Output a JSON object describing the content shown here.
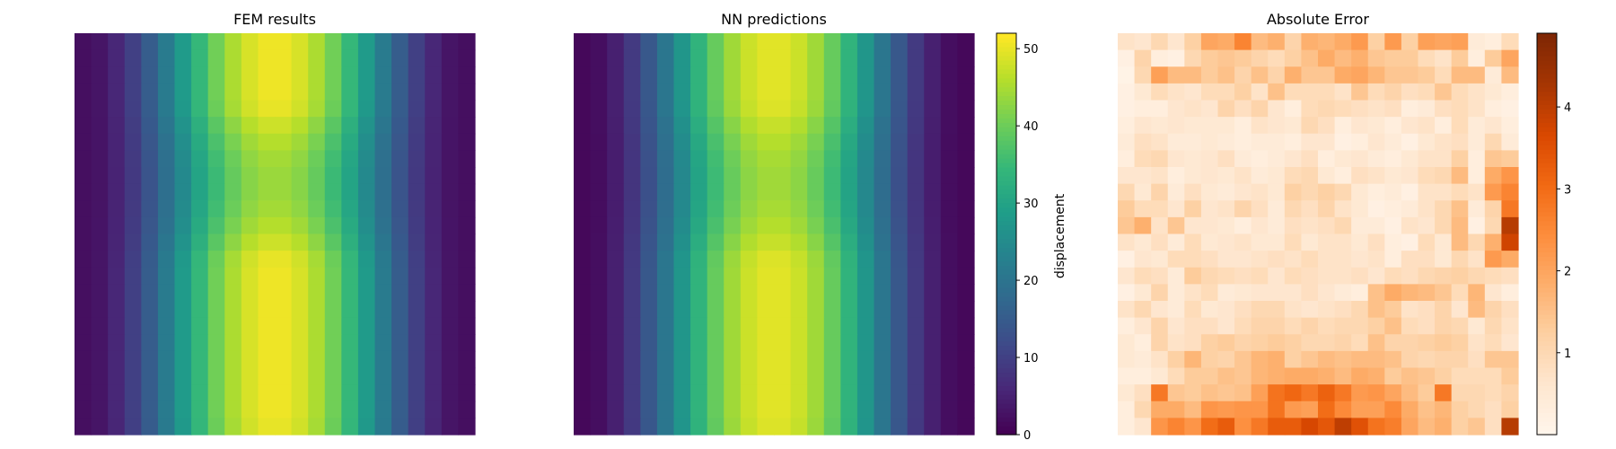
{
  "chart_data": [
    {
      "type": "heatmap",
      "title": "FEM results",
      "grid_size": [
        24,
        24
      ],
      "colormap": "viridis",
      "value_range": [
        0,
        52
      ],
      "axes_visible": false,
      "field": {
        "center_column": 11.5,
        "column_wavelength": 23,
        "row_period": 19,
        "row_phase": -1,
        "peak": 51,
        "trough": 2,
        "row_modulation_amplitude": 0.14
      }
    },
    {
      "type": "heatmap",
      "title": "NN predictions",
      "grid_size": [
        24,
        24
      ],
      "colormap": "viridis",
      "value_range": [
        0,
        52
      ],
      "axes_visible": false,
      "colorbar": {
        "label": "displacement",
        "ticks": [
          0,
          10,
          20,
          30,
          40,
          50
        ]
      },
      "field": {
        "center_column": 11.5,
        "column_wavelength": 23,
        "row_period": 19,
        "row_phase": -1,
        "peak": 50,
        "trough": 1,
        "row_modulation_amplitude": 0.11
      }
    },
    {
      "type": "heatmap",
      "title": "Absolute Error",
      "grid_size": [
        24,
        24
      ],
      "colormap": "Oranges",
      "value_range": [
        0,
        4.9
      ],
      "axes_visible": false,
      "colorbar": {
        "label": "",
        "ticks": [
          1,
          2,
          3,
          4
        ]
      },
      "values": [
        [
          0.7,
          0.6,
          1.0,
          0.6,
          1.2,
          2.0,
          1.9,
          2.6,
          1.6,
          1.8,
          1.1,
          1.8,
          1.7,
          1.9,
          2.2,
          1.2,
          2.2,
          1.2,
          2.1,
          2.0,
          2.1,
          0.4,
          0.3,
          0.9
        ],
        [
          0.2,
          1.1,
          0.3,
          0.2,
          1.0,
          1.3,
          1.4,
          1.3,
          1.1,
          0.9,
          1.2,
          1.5,
          1.9,
          1.6,
          1.8,
          1.4,
          1.3,
          1.3,
          0.9,
          0.7,
          1.3,
          0.3,
          1.3,
          2.0
        ],
        [
          0.1,
          1.0,
          2.1,
          1.6,
          1.6,
          1.3,
          1.5,
          1.1,
          1.5,
          1.1,
          1.8,
          1.4,
          1.4,
          1.9,
          2.0,
          1.7,
          1.4,
          1.4,
          1.3,
          0.9,
          1.6,
          1.6,
          0.4,
          1.6
        ],
        [
          0.2,
          0.5,
          0.9,
          0.7,
          0.6,
          0.9,
          0.9,
          1.2,
          0.7,
          1.5,
          0.9,
          0.9,
          0.9,
          0.7,
          1.4,
          0.9,
          1.1,
          0.8,
          0.9,
          1.4,
          0.9,
          0.7,
          0.5,
          0.3
        ],
        [
          0.2,
          0.3,
          0.3,
          0.6,
          0.7,
          0.6,
          1.1,
          0.8,
          1.1,
          0.6,
          0.3,
          0.9,
          1.0,
          0.9,
          0.8,
          0.7,
          0.8,
          0.3,
          0.4,
          0.8,
          0.9,
          0.7,
          0.3,
          0.2
        ],
        [
          0.3,
          0.6,
          0.5,
          0.6,
          0.5,
          0.5,
          0.5,
          0.3,
          0.7,
          0.6,
          0.5,
          1.0,
          0.8,
          0.3,
          0.6,
          0.5,
          0.3,
          0.6,
          0.7,
          0.3,
          0.9,
          0.4,
          0.6,
          0.3
        ],
        [
          0.4,
          0.8,
          0.7,
          0.4,
          0.4,
          0.5,
          0.4,
          0.3,
          0.4,
          0.4,
          0.3,
          0.6,
          0.6,
          0.2,
          0.3,
          0.6,
          0.4,
          0.2,
          0.5,
          0.7,
          0.8,
          0.4,
          1.0,
          0.4
        ],
        [
          0.3,
          0.9,
          1.0,
          0.6,
          0.5,
          0.6,
          0.8,
          0.4,
          0.3,
          0.4,
          0.6,
          0.8,
          0.3,
          0.5,
          0.6,
          0.4,
          0.3,
          0.5,
          0.7,
          0.7,
          1.2,
          0.3,
          1.4,
          1.3
        ],
        [
          0.6,
          0.6,
          0.7,
          0.3,
          0.5,
          0.6,
          0.5,
          0.7,
          0.4,
          0.5,
          0.9,
          1.0,
          0.5,
          0.3,
          0.8,
          0.7,
          0.5,
          0.6,
          0.9,
          1.0,
          1.6,
          0.3,
          1.9,
          2.3
        ],
        [
          1.0,
          0.5,
          1.1,
          0.4,
          0.8,
          0.5,
          0.4,
          0.6,
          0.7,
          0.5,
          1.2,
          1.0,
          1.2,
          1.0,
          0.5,
          0.3,
          0.4,
          0.2,
          0.7,
          0.7,
          0.9,
          0.7,
          2.2,
          2.6
        ],
        [
          1.3,
          0.9,
          0.9,
          0.6,
          1.2,
          0.6,
          0.7,
          1.1,
          0.8,
          0.4,
          1.0,
          0.8,
          1.1,
          0.7,
          0.5,
          0.2,
          0.3,
          0.4,
          0.7,
          1.0,
          1.5,
          0.4,
          1.1,
          2.8
        ],
        [
          1.4,
          1.8,
          0.7,
          1.4,
          0.6,
          0.6,
          0.5,
          0.3,
          0.6,
          0.4,
          0.8,
          0.7,
          0.8,
          1.0,
          0.4,
          0.4,
          0.2,
          0.7,
          0.6,
          1.0,
          1.6,
          0.2,
          1.0,
          4.1
        ],
        [
          0.7,
          0.5,
          0.8,
          0.4,
          0.9,
          0.5,
          0.6,
          0.7,
          0.5,
          0.5,
          0.9,
          0.5,
          0.7,
          0.7,
          0.5,
          0.8,
          0.3,
          0.2,
          0.9,
          0.5,
          1.6,
          1.0,
          1.8,
          3.8
        ],
        [
          0.2,
          0.6,
          0.5,
          0.9,
          0.9,
          0.8,
          0.6,
          0.6,
          0.7,
          0.8,
          0.7,
          0.9,
          0.7,
          0.7,
          0.6,
          0.7,
          0.3,
          0.8,
          0.8,
          0.5,
          1.0,
          0.7,
          2.2,
          1.9
        ],
        [
          0.6,
          0.9,
          0.8,
          0.4,
          1.3,
          1.0,
          0.9,
          0.8,
          0.9,
          0.6,
          0.9,
          0.8,
          0.7,
          0.7,
          0.8,
          0.6,
          0.9,
          0.8,
          1.0,
          1.1,
          1.2,
          1.0,
          0.9,
          0.8
        ],
        [
          0.2,
          0.5,
          1.1,
          0.4,
          0.7,
          0.9,
          0.4,
          0.5,
          0.6,
          0.6,
          0.6,
          0.8,
          0.6,
          0.4,
          0.3,
          1.5,
          1.9,
          1.7,
          1.6,
          1.4,
          0.9,
          1.7,
          0.6,
          0.3
        ],
        [
          0.7,
          1.0,
          0.6,
          0.4,
          0.9,
          0.5,
          0.6,
          0.8,
          1.0,
          1.0,
          0.7,
          0.6,
          0.7,
          0.8,
          1.0,
          1.5,
          1.3,
          0.7,
          0.8,
          1.1,
          0.6,
          1.6,
          1.1,
          0.8
        ],
        [
          0.3,
          0.6,
          1.1,
          0.6,
          0.8,
          0.8,
          0.6,
          0.9,
          1.1,
          1.1,
          0.9,
          1.1,
          0.9,
          1.0,
          1.0,
          1.2,
          1.5,
          0.9,
          0.8,
          1.1,
          1.0,
          0.5,
          1.0,
          0.7
        ],
        [
          0.5,
          0.3,
          1.1,
          0.7,
          0.8,
          1.2,
          1.3,
          1.1,
          1.2,
          1.3,
          1.2,
          1.0,
          1.0,
          1.1,
          0.9,
          1.5,
          1.1,
          1.1,
          1.2,
          1.3,
          1.2,
          0.7,
          0.9,
          0.6
        ],
        [
          0.5,
          0.4,
          0.7,
          1.2,
          1.7,
          1.2,
          1.1,
          1.4,
          1.7,
          1.8,
          1.2,
          1.4,
          1.6,
          1.5,
          1.6,
          1.6,
          1.5,
          1.1,
          1.0,
          1.1,
          1.1,
          0.8,
          1.4,
          1.4
        ],
        [
          0.3,
          0.3,
          0.5,
          0.9,
          1.3,
          1.3,
          1.5,
          1.4,
          1.7,
          1.8,
          1.9,
          1.9,
          1.8,
          1.6,
          1.9,
          1.8,
          1.3,
          1.5,
          1.4,
          1.2,
          0.9,
          0.9,
          0.9,
          1.3
        ],
        [
          0.5,
          0.8,
          2.8,
          1.4,
          1.3,
          1.5,
          1.4,
          1.5,
          2.1,
          2.9,
          3.1,
          2.8,
          3.2,
          2.8,
          2.2,
          2.3,
          2.0,
          1.6,
          1.3,
          2.8,
          1.0,
          1.0,
          0.9,
          1.1
        ],
        [
          0.3,
          1.0,
          1.9,
          1.9,
          1.6,
          2.3,
          2.2,
          2.3,
          2.3,
          2.9,
          2.2,
          2.1,
          3.0,
          2.5,
          2.1,
          2.1,
          2.5,
          1.9,
          1.5,
          1.7,
          1.2,
          1.0,
          0.8,
          1.2
        ],
        [
          0.3,
          0.6,
          2.3,
          2.6,
          2.3,
          3.0,
          3.3,
          2.4,
          2.8,
          3.3,
          3.3,
          3.7,
          3.4,
          4.0,
          3.5,
          2.9,
          2.7,
          2.0,
          1.6,
          1.8,
          1.2,
          1.4,
          0.8,
          4.1
        ]
      ]
    }
  ]
}
